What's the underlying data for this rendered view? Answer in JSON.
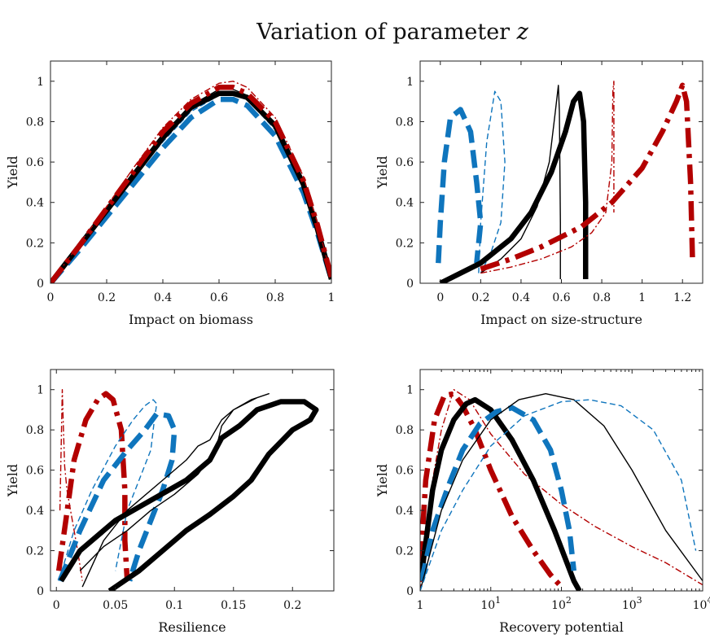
{
  "figure_title_main": "Variation of parameter ",
  "figure_title_var": "z",
  "chart_data": [
    {
      "type": "line",
      "id": "biomass",
      "xlabel": "Impact on biomass",
      "ylabel": "Yield",
      "xlim": [
        0,
        1
      ],
      "ylim": [
        0,
        1.1
      ],
      "xscale": "linear",
      "xticks": [
        0,
        0.2,
        0.4,
        0.6,
        0.8,
        1
      ],
      "xticklabels": [
        "0",
        "0.2",
        "0.4",
        "0.6",
        "0.8",
        "1"
      ],
      "yticks": [
        0,
        0.2,
        0.4,
        0.6,
        0.8,
        1
      ],
      "yticklabels": [
        "0",
        "0.2",
        "0.4",
        "0.6",
        "0.8",
        "1"
      ],
      "series": [
        {
          "name": "blue-thick",
          "color": "#0f75bd",
          "style": "dashed-thick",
          "x": [
            0,
            0.1,
            0.2,
            0.3,
            0.4,
            0.5,
            0.6,
            0.65,
            0.7,
            0.8,
            0.9,
            0.95,
            1.0
          ],
          "y": [
            0,
            0.16,
            0.33,
            0.5,
            0.67,
            0.82,
            0.91,
            0.91,
            0.88,
            0.73,
            0.45,
            0.25,
            0.02
          ]
        },
        {
          "name": "blue-thin",
          "color": "#0f75bd",
          "style": "dashed-thin",
          "x": [
            0,
            0.1,
            0.2,
            0.3,
            0.4,
            0.5,
            0.6,
            0.65,
            0.7,
            0.8,
            0.9,
            0.95,
            1.0
          ],
          "y": [
            0,
            0.17,
            0.35,
            0.53,
            0.7,
            0.85,
            0.93,
            0.94,
            0.91,
            0.76,
            0.47,
            0.26,
            0.02
          ]
        },
        {
          "name": "black-thick",
          "color": "#000000",
          "style": "solid-thick",
          "x": [
            0,
            0.1,
            0.2,
            0.3,
            0.4,
            0.5,
            0.6,
            0.65,
            0.7,
            0.8,
            0.9,
            0.95,
            1.0
          ],
          "y": [
            0,
            0.18,
            0.36,
            0.54,
            0.72,
            0.87,
            0.94,
            0.94,
            0.92,
            0.78,
            0.49,
            0.27,
            0.02
          ]
        },
        {
          "name": "black-thin",
          "color": "#000000",
          "style": "solid-thin",
          "x": [
            0,
            0.1,
            0.2,
            0.3,
            0.4,
            0.5,
            0.6,
            0.65,
            0.7,
            0.8,
            0.9,
            0.95,
            1.0
          ],
          "y": [
            0,
            0.18,
            0.37,
            0.56,
            0.74,
            0.88,
            0.96,
            0.96,
            0.93,
            0.79,
            0.5,
            0.28,
            0.02
          ]
        },
        {
          "name": "red-thick",
          "color": "#b30000",
          "style": "dashdot-thick",
          "x": [
            0,
            0.1,
            0.2,
            0.3,
            0.4,
            0.5,
            0.6,
            0.65,
            0.7,
            0.8,
            0.9,
            0.95,
            1.0
          ],
          "y": [
            0,
            0.18,
            0.37,
            0.56,
            0.75,
            0.89,
            0.97,
            0.97,
            0.94,
            0.8,
            0.51,
            0.29,
            0.03
          ]
        },
        {
          "name": "red-thin",
          "color": "#b30000",
          "style": "dashdot-thin",
          "x": [
            0,
            0.1,
            0.2,
            0.3,
            0.4,
            0.5,
            0.6,
            0.65,
            0.7,
            0.8,
            0.9,
            0.95,
            1.0
          ],
          "y": [
            0,
            0.19,
            0.38,
            0.58,
            0.77,
            0.91,
            0.99,
            1.0,
            0.97,
            0.82,
            0.53,
            0.3,
            0.03
          ]
        }
      ]
    },
    {
      "type": "line",
      "id": "size",
      "xlabel": "Impact on size-structure",
      "ylabel": "Yield",
      "xlim": [
        -0.1,
        1.3
      ],
      "ylim": [
        0,
        1.1
      ],
      "xscale": "linear",
      "xticks": [
        0,
        0.2,
        0.4,
        0.6,
        0.8,
        1,
        1.2
      ],
      "xticklabels": [
        "0",
        "0.2",
        "0.4",
        "0.6",
        "0.8",
        "1",
        "1.2"
      ],
      "yticks": [
        0,
        0.2,
        0.4,
        0.6,
        0.8,
        1
      ],
      "yticklabels": [
        "0",
        "0.2",
        "0.4",
        "0.6",
        "0.8",
        "1"
      ],
      "series": [
        {
          "name": "blue-thick",
          "color": "#0f75bd",
          "style": "dashed-thick",
          "x": [
            -0.01,
            0.0,
            0.02,
            0.05,
            0.1,
            0.15,
            0.18,
            0.2,
            0.18
          ],
          "y": [
            0.1,
            0.3,
            0.6,
            0.82,
            0.86,
            0.75,
            0.5,
            0.3,
            0.1
          ]
        },
        {
          "name": "blue-thin",
          "color": "#0f75bd",
          "style": "dashed-thin",
          "x": [
            0.19,
            0.2,
            0.23,
            0.27,
            0.3,
            0.32,
            0.3,
            0.25,
            0.2
          ],
          "y": [
            0.05,
            0.3,
            0.7,
            0.95,
            0.9,
            0.6,
            0.3,
            0.15,
            0.05
          ]
        },
        {
          "name": "black-thick",
          "color": "#000000",
          "style": "solid-thick",
          "x": [
            0.0,
            0.2,
            0.35,
            0.45,
            0.55,
            0.62,
            0.66,
            0.69,
            0.71,
            0.72,
            0.72
          ],
          "y": [
            0.0,
            0.1,
            0.22,
            0.35,
            0.55,
            0.75,
            0.9,
            0.94,
            0.8,
            0.4,
            0.02
          ]
        },
        {
          "name": "black-thin",
          "color": "#000000",
          "style": "solid-thin",
          "x": [
            0.2,
            0.3,
            0.4,
            0.48,
            0.54,
            0.57,
            0.585,
            0.59,
            0.595,
            0.595
          ],
          "y": [
            0.05,
            0.12,
            0.22,
            0.38,
            0.6,
            0.85,
            0.98,
            0.85,
            0.3,
            0.02
          ]
        },
        {
          "name": "red-thick",
          "color": "#b30000",
          "style": "dashdot-thick",
          "x": [
            0.2,
            0.35,
            0.5,
            0.7,
            0.85,
            1.0,
            1.1,
            1.17,
            1.2,
            1.22,
            1.24,
            1.25
          ],
          "y": [
            0.07,
            0.12,
            0.18,
            0.28,
            0.4,
            0.57,
            0.75,
            0.9,
            0.98,
            0.9,
            0.5,
            0.1
          ]
        },
        {
          "name": "red-thin",
          "color": "#b30000",
          "style": "dashdot-thin",
          "x": [
            0.2,
            0.35,
            0.5,
            0.65,
            0.75,
            0.82,
            0.85,
            0.855,
            0.86,
            0.86
          ],
          "y": [
            0.05,
            0.08,
            0.12,
            0.18,
            0.25,
            0.35,
            0.6,
            0.95,
            1.0,
            0.35
          ]
        }
      ]
    },
    {
      "type": "line",
      "id": "resilience",
      "xlabel": "Resilience",
      "ylabel": "Yield",
      "xlim": [
        -0.005,
        0.235
      ],
      "ylim": [
        0,
        1.1
      ],
      "xscale": "linear",
      "xticks": [
        0,
        0.05,
        0.1,
        0.15,
        0.2
      ],
      "xticklabels": [
        "0",
        "0.05",
        "0.1",
        "0.15",
        "0.2"
      ],
      "yticks": [
        0,
        0.2,
        0.4,
        0.6,
        0.8,
        1
      ],
      "yticklabels": [
        "0",
        "0.2",
        "0.4",
        "0.6",
        "0.8",
        "1"
      ],
      "series": [
        {
          "name": "red-thin",
          "color": "#b30000",
          "style": "dashdot-thin",
          "x": [
            0.003,
            0.004,
            0.005,
            0.006,
            0.007,
            0.009,
            0.012,
            0.018,
            0.022
          ],
          "y": [
            0.4,
            0.7,
            1.0,
            0.8,
            0.62,
            0.5,
            0.4,
            0.2,
            0.05
          ]
        },
        {
          "name": "red-thick",
          "color": "#b30000",
          "style": "dashdot-thick",
          "x": [
            0.002,
            0.008,
            0.015,
            0.025,
            0.035,
            0.042,
            0.048,
            0.055,
            0.058,
            0.058,
            0.06
          ],
          "y": [
            0.1,
            0.35,
            0.65,
            0.85,
            0.95,
            0.98,
            0.95,
            0.8,
            0.5,
            0.25,
            0.05
          ]
        },
        {
          "name": "blue-thin",
          "color": "#0f75bd",
          "style": "dashed-thin",
          "x": [
            0.002,
            0.015,
            0.03,
            0.05,
            0.065,
            0.075,
            0.082,
            0.085,
            0.083,
            0.08,
            0.07,
            0.06,
            0.055,
            0.05
          ],
          "y": [
            0.05,
            0.3,
            0.5,
            0.72,
            0.85,
            0.92,
            0.95,
            0.93,
            0.85,
            0.7,
            0.55,
            0.4,
            0.25,
            0.1
          ]
        },
        {
          "name": "blue-thick",
          "color": "#0f75bd",
          "style": "dashed-thick",
          "x": [
            0.003,
            0.02,
            0.04,
            0.06,
            0.075,
            0.085,
            0.095,
            0.1,
            0.098,
            0.09,
            0.08,
            0.07,
            0.062
          ],
          "y": [
            0.05,
            0.3,
            0.55,
            0.7,
            0.8,
            0.88,
            0.87,
            0.8,
            0.65,
            0.5,
            0.35,
            0.2,
            0.05
          ]
        },
        {
          "name": "black-thin",
          "color": "#000000",
          "style": "solid-thin",
          "x": [
            0.022,
            0.04,
            0.06,
            0.09,
            0.11,
            0.12,
            0.13,
            0.14,
            0.15,
            0.16,
            0.17,
            0.18,
            0.165,
            0.15,
            0.14,
            0.135,
            0.12,
            0.1,
            0.08,
            0.06,
            0.04,
            0.02
          ],
          "y": [
            0.02,
            0.25,
            0.4,
            0.55,
            0.65,
            0.72,
            0.75,
            0.85,
            0.9,
            0.93,
            0.96,
            0.98,
            0.95,
            0.9,
            0.82,
            0.7,
            0.58,
            0.48,
            0.4,
            0.3,
            0.22,
            0.1
          ]
        },
        {
          "name": "black-thick",
          "color": "#000000",
          "style": "solid-thick",
          "x": [
            0.004,
            0.02,
            0.05,
            0.08,
            0.11,
            0.13,
            0.14,
            0.155,
            0.17,
            0.19,
            0.21,
            0.22,
            0.215,
            0.2,
            0.18,
            0.165,
            0.15,
            0.13,
            0.11,
            0.09,
            0.07,
            0.045
          ],
          "y": [
            0.05,
            0.2,
            0.35,
            0.45,
            0.55,
            0.65,
            0.76,
            0.82,
            0.9,
            0.94,
            0.94,
            0.9,
            0.85,
            0.8,
            0.68,
            0.55,
            0.47,
            0.38,
            0.3,
            0.2,
            0.1,
            0.0
          ]
        }
      ]
    },
    {
      "type": "line",
      "id": "recovery",
      "xlabel": "Recovery potential",
      "ylabel": "Yield",
      "xlim": [
        1,
        10000
      ],
      "ylim": [
        0,
        1.1
      ],
      "xscale": "log",
      "xticks": [
        1,
        10,
        100,
        1000,
        10000
      ],
      "xticklabels_base": [
        "1",
        "10",
        "10",
        "10",
        "10"
      ],
      "xticklabels_exp": [
        "",
        "1",
        "2",
        "3",
        "4"
      ],
      "yticks": [
        0,
        0.2,
        0.4,
        0.6,
        0.8,
        1
      ],
      "yticklabels": [
        "0",
        "0.2",
        "0.4",
        "0.6",
        "0.8",
        "1"
      ],
      "series": [
        {
          "name": "red-thick",
          "color": "#b30000",
          "style": "dashdot-thick",
          "x": [
            1.02,
            1.2,
            1.6,
            2.2,
            3.0,
            4.0,
            6,
            10,
            20,
            40,
            70,
            100
          ],
          "y": [
            0.15,
            0.55,
            0.85,
            0.97,
            0.98,
            0.92,
            0.8,
            0.6,
            0.37,
            0.2,
            0.08,
            0.02
          ]
        },
        {
          "name": "red-thin",
          "color": "#b30000",
          "style": "dashdot-thin",
          "x": [
            1,
            1.5,
            2,
            3,
            5,
            10,
            30,
            100,
            300,
            1000,
            3000,
            10000
          ],
          "y": [
            0.0,
            0.55,
            0.8,
            1.0,
            0.95,
            0.78,
            0.58,
            0.43,
            0.32,
            0.22,
            0.14,
            0.03
          ]
        },
        {
          "name": "black-thick",
          "color": "#000000",
          "style": "solid-thick",
          "x": [
            1.02,
            1.5,
            2,
            3,
            4.5,
            6,
            10,
            20,
            40,
            80,
            150,
            180
          ],
          "y": [
            0.05,
            0.5,
            0.7,
            0.85,
            0.93,
            0.95,
            0.9,
            0.75,
            0.55,
            0.3,
            0.05,
            0.0
          ]
        },
        {
          "name": "blue-thick",
          "color": "#0f75bd",
          "style": "dashed-thick",
          "x": [
            1.05,
            1.5,
            2.5,
            4,
            7,
            12,
            20,
            40,
            70,
            100,
            130,
            150
          ],
          "y": [
            0.05,
            0.3,
            0.52,
            0.7,
            0.83,
            0.89,
            0.91,
            0.85,
            0.7,
            0.5,
            0.3,
            0.1
          ]
        },
        {
          "name": "black-thin",
          "color": "#000000",
          "style": "solid-thin",
          "x": [
            1,
            2,
            4,
            10,
            25,
            60,
            150,
            400,
            1000,
            3000,
            10000
          ],
          "y": [
            0.0,
            0.4,
            0.65,
            0.85,
            0.95,
            0.98,
            0.95,
            0.82,
            0.6,
            0.3,
            0.05
          ]
        },
        {
          "name": "blue-thin",
          "color": "#0f75bd",
          "style": "dashed-thin",
          "x": [
            1,
            2,
            4,
            10,
            30,
            100,
            250,
            700,
            2000,
            5000,
            8000
          ],
          "y": [
            0.0,
            0.3,
            0.5,
            0.72,
            0.87,
            0.94,
            0.95,
            0.92,
            0.8,
            0.55,
            0.2
          ]
        }
      ]
    }
  ]
}
